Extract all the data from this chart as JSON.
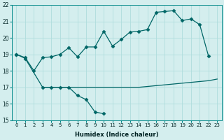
{
  "xlabel": "Humidex (Indice chaleur)",
  "x": [
    0,
    1,
    2,
    3,
    4,
    5,
    6,
    7,
    8,
    9,
    10,
    11,
    12,
    13,
    14,
    15,
    16,
    17,
    18,
    19,
    20,
    21,
    22,
    23
  ],
  "line_upper": [
    19.0,
    18.8,
    18.0,
    18.8,
    18.85,
    19.0,
    19.4,
    18.85,
    19.45,
    19.45,
    20.4,
    19.5,
    19.9,
    20.35,
    20.4,
    20.5,
    21.55,
    21.6,
    21.65,
    21.05,
    21.15,
    20.8,
    18.9,
    null
  ],
  "line_lower": [
    19.0,
    18.75,
    null,
    17.0,
    17.0,
    17.0,
    17.0,
    16.5,
    16.25,
    15.5,
    15.4,
    null,
    null,
    null,
    null,
    null,
    null,
    null,
    null,
    null,
    null,
    null,
    null,
    null
  ],
  "line_flat": [
    null,
    null,
    null,
    17.0,
    17.0,
    17.0,
    17.0,
    17.0,
    17.0,
    17.0,
    17.0,
    17.0,
    17.0,
    17.0,
    17.0,
    17.05,
    17.1,
    17.15,
    17.2,
    17.25,
    17.3,
    17.35,
    17.4,
    17.5
  ],
  "ylim": [
    15,
    22
  ],
  "xlim": [
    -0.5,
    23.5
  ],
  "yticks": [
    15,
    16,
    17,
    18,
    19,
    20,
    21,
    22
  ],
  "xticks": [
    0,
    1,
    2,
    3,
    4,
    5,
    6,
    7,
    8,
    9,
    10,
    11,
    12,
    13,
    14,
    15,
    16,
    17,
    18,
    19,
    20,
    21,
    22,
    23
  ],
  "line_color": "#006666",
  "bg_color": "#d4eeee",
  "grid_color": "#b0dddd",
  "marker": "D",
  "marker_size": 2.5,
  "linewidth": 0.9
}
